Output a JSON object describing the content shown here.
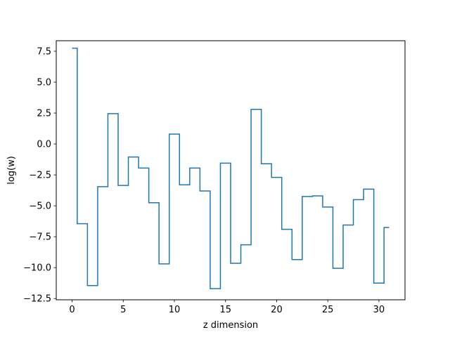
{
  "chart_data": {
    "type": "line",
    "step": "mid",
    "title": "",
    "xlabel": "z dimension",
    "ylabel": "log(w)",
    "xlim": [
      -1.55,
      32.55
    ],
    "ylim": [
      -12.6,
      8.35
    ],
    "xticks": [
      0,
      5,
      10,
      15,
      20,
      25,
      30
    ],
    "xtick_labels": [
      "0",
      "5",
      "10",
      "15",
      "20",
      "25",
      "30"
    ],
    "yticks": [
      -12.5,
      -10.0,
      -7.5,
      -5.0,
      -2.5,
      0.0,
      2.5,
      5.0,
      7.5
    ],
    "ytick_labels": [
      "−12.5",
      "−10.0",
      "−7.5",
      "−5.0",
      "−2.5",
      "0.0",
      "2.5",
      "5.0",
      "7.5"
    ],
    "grid": false,
    "line_color": "#1f77b4",
    "series": [
      {
        "x": [
          0,
          1,
          2,
          3,
          4,
          5,
          6,
          7,
          8,
          9,
          10,
          11,
          12,
          13,
          14,
          15,
          16,
          17,
          18,
          19,
          20,
          21,
          22,
          23,
          24,
          25,
          26,
          27,
          28,
          29,
          30,
          31
        ],
        "values": [
          7.75,
          -6.45,
          -11.45,
          -3.45,
          2.45,
          -3.35,
          -1.05,
          -1.95,
          -4.75,
          -9.7,
          0.8,
          -3.3,
          -1.95,
          -3.8,
          -11.7,
          -1.55,
          -9.65,
          -8.15,
          2.8,
          -1.6,
          -2.7,
          -6.9,
          -9.35,
          -4.25,
          -4.2,
          -5.1,
          -10.05,
          -6.55,
          -4.5,
          -3.65,
          -11.25,
          -6.75
        ]
      }
    ]
  }
}
